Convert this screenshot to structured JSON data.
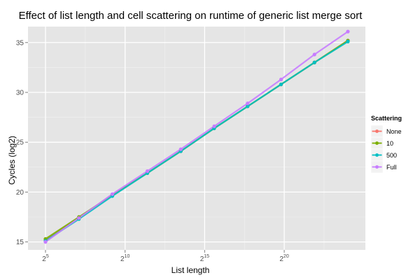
{
  "chart_data": {
    "type": "line",
    "title": "Effect of list length and cell scattering on runtime of generic list merge sort",
    "xlabel": "List length",
    "ylabel": "Cycles (log2)",
    "x_scale": "log2",
    "x_ticks": [
      {
        "base": "2",
        "exp": "5",
        "value": 32
      },
      {
        "base": "2",
        "exp": "10",
        "value": 1024
      },
      {
        "base": "2",
        "exp": "15",
        "value": 32768
      },
      {
        "base": "2",
        "exp": "20",
        "value": 1048576
      }
    ],
    "y_ticks": [
      15,
      20,
      25,
      30,
      35
    ],
    "xlim_log2": [
      3.9,
      25.1
    ],
    "ylim": [
      14.2,
      36.6
    ],
    "grid": true,
    "legend": {
      "title": "Scattering",
      "position": "right"
    },
    "series": [
      {
        "name": "None",
        "color": "#F8766D",
        "x_log2": [
          5.0,
          7.1,
          9.2,
          11.4,
          13.5,
          15.6,
          17.7,
          19.8,
          21.9,
          24.0
        ],
        "y": [
          15.2,
          17.4,
          19.7,
          21.9,
          24.1,
          26.4,
          28.6,
          30.8,
          33.0,
          35.2
        ]
      },
      {
        "name": "10",
        "color": "#7CAE00",
        "x_log2": [
          5.0,
          7.1,
          9.2,
          11.4,
          13.5,
          15.6,
          17.7,
          19.8,
          21.9,
          24.0
        ],
        "y": [
          15.3,
          17.5,
          19.7,
          21.9,
          24.1,
          26.4,
          28.6,
          30.8,
          33.0,
          35.2
        ]
      },
      {
        "name": "500",
        "color": "#00BFC4",
        "x_log2": [
          5.0,
          7.1,
          9.2,
          11.4,
          13.5,
          15.6,
          17.7,
          19.8,
          21.9,
          24.0
        ],
        "y": [
          15.1,
          17.3,
          19.6,
          21.9,
          24.1,
          26.4,
          28.6,
          30.8,
          33.0,
          35.1
        ]
      },
      {
        "name": "Full",
        "color": "#C77CFF",
        "x_log2": [
          5.0,
          7.1,
          9.2,
          11.4,
          13.5,
          15.6,
          17.7,
          19.8,
          21.9,
          24.0
        ],
        "y": [
          15.0,
          17.4,
          19.8,
          22.1,
          24.3,
          26.6,
          28.9,
          31.3,
          33.8,
          36.1
        ]
      }
    ]
  }
}
